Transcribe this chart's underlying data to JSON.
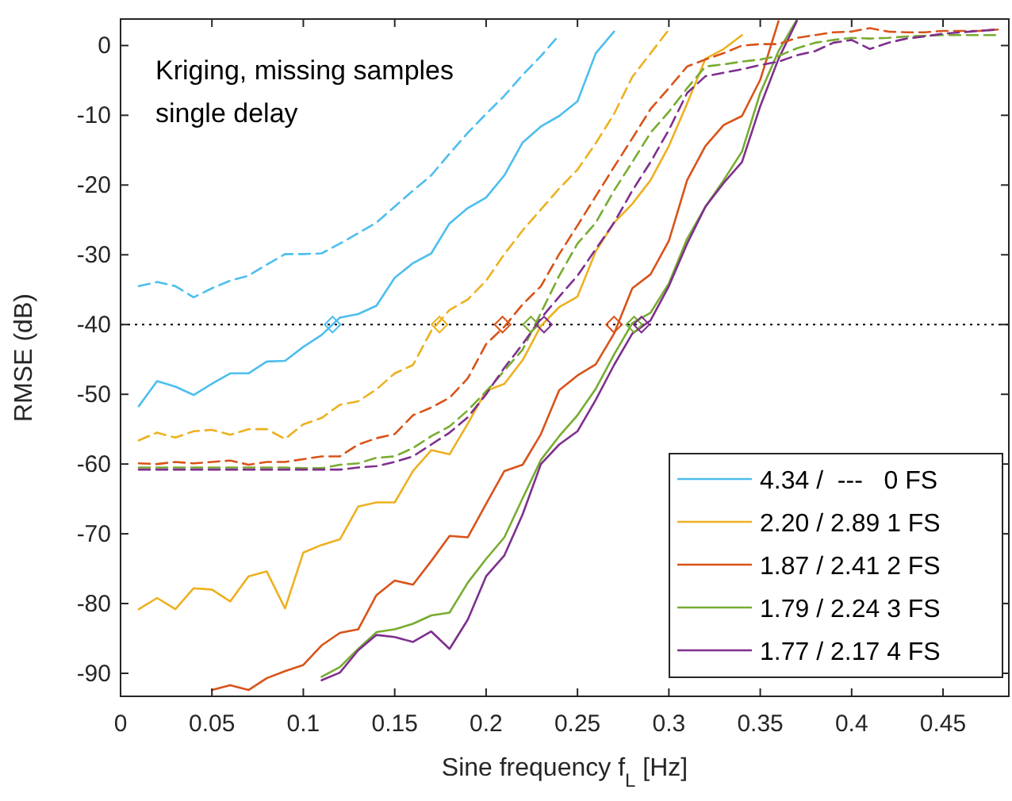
{
  "chart_data": {
    "type": "line",
    "xlabel": "Sine frequency f$_{L}$ [Hz]",
    "ylabel": "RMSE (dB)",
    "annotations": [
      "Kriging, missing samples\nsingle delay"
    ],
    "xlim": [
      0,
      0.486
    ],
    "ylim": [
      -93.3,
      3.8
    ],
    "xticks": [
      0,
      0.05,
      0.1,
      0.15,
      0.2,
      0.25,
      0.3,
      0.35,
      0.4,
      0.45
    ],
    "yticks": [
      -90,
      -80,
      -70,
      -60,
      -50,
      -40,
      -30,
      -20,
      -10,
      0
    ],
    "legend": "bottom right",
    "marker": "none",
    "ref_lines": [
      {
        "axis": "y",
        "value": -40,
        "color": "#000000",
        "line_style": "dotted"
      }
    ],
    "series": [
      {
        "name": "4.34 /  ---   0 FS",
        "color": "#4dbeee",
        "line_style": "solid",
        "x": [
          0.01,
          0.02,
          0.03,
          0.04,
          0.05,
          0.06,
          0.07,
          0.08,
          0.09,
          0.1,
          0.11,
          0.12,
          0.13,
          0.14,
          0.15,
          0.16,
          0.17,
          0.18,
          0.19,
          0.2,
          0.21,
          0.22,
          0.23,
          0.24,
          0.25,
          0.26,
          0.27
        ],
        "values": [
          -51.7,
          -48.1,
          -48.9,
          -50.1,
          -48.5,
          -47,
          -47,
          -45.3,
          -45.2,
          -43.2,
          -41.5,
          -39,
          -38.5,
          -37.3,
          -33.3,
          -31.2,
          -29.8,
          -25.5,
          -23.3,
          -21.8,
          -18.6,
          -13.9,
          -11.6,
          -10.1,
          -8,
          -1.1,
          2
        ]
      },
      {
        "name": "2.20 / 2.89 1 FS",
        "color": "#edb120",
        "line_style": "solid",
        "x": [
          0.01,
          0.02,
          0.03,
          0.04,
          0.05,
          0.06,
          0.07,
          0.08,
          0.09,
          0.1,
          0.11,
          0.12,
          0.13,
          0.14,
          0.15,
          0.16,
          0.17,
          0.18,
          0.19,
          0.2,
          0.21,
          0.22,
          0.23,
          0.24,
          0.25,
          0.26,
          0.27,
          0.28,
          0.29,
          0.3,
          0.31,
          0.32,
          0.33,
          0.34
        ],
        "values": [
          -80.8,
          -79.2,
          -80.8,
          -77.8,
          -78,
          -79.7,
          -76.1,
          -75.4,
          -80.7,
          -72.7,
          -71.6,
          -70.8,
          -66.1,
          -65.5,
          -65.5,
          -61,
          -58,
          -58.6,
          -54.2,
          -49.5,
          -48.5,
          -45.1,
          -40.2,
          -37.5,
          -36,
          -29.5,
          -25.4,
          -22.7,
          -19.3,
          -14.4,
          -8.3,
          -1.9,
          -0.5,
          1.5
        ]
      },
      {
        "name": "1.87 / 2.41 2 FS",
        "color": "#d95319",
        "line_style": "solid",
        "x": [
          0.05,
          0.06,
          0.07,
          0.08,
          0.09,
          0.1,
          0.11,
          0.12,
          0.13,
          0.14,
          0.15,
          0.16,
          0.17,
          0.18,
          0.19,
          0.2,
          0.21,
          0.22,
          0.23,
          0.24,
          0.25,
          0.26,
          0.27,
          0.28,
          0.29,
          0.3,
          0.31,
          0.32,
          0.33,
          0.34,
          0.35,
          0.36
        ],
        "values": [
          -92.4,
          -91.7,
          -92.4,
          -90.7,
          -89.7,
          -88.8,
          -86,
          -84.2,
          -83.7,
          -78.8,
          -76.7,
          -77.3,
          -73.9,
          -70.3,
          -70.5,
          -65.7,
          -61,
          -60.1,
          -55.7,
          -49.4,
          -47.3,
          -45.7,
          -41.3,
          -34.8,
          -32.8,
          -28,
          -19.3,
          -14.4,
          -11.4,
          -10.1,
          -4.9,
          3.5
        ]
      },
      {
        "name": "1.79 / 2.24 3 FS",
        "color": "#77ac30",
        "line_style": "solid",
        "x": [
          0.11,
          0.12,
          0.13,
          0.14,
          0.15,
          0.16,
          0.17,
          0.18,
          0.19,
          0.2,
          0.21,
          0.22,
          0.23,
          0.24,
          0.25,
          0.26,
          0.27,
          0.28,
          0.29,
          0.3,
          0.31,
          0.32,
          0.33,
          0.34,
          0.35,
          0.36,
          0.37
        ],
        "values": [
          -90.5,
          -89.1,
          -86.5,
          -84.1,
          -83.7,
          -82.9,
          -81.7,
          -81.3,
          -77,
          -73.6,
          -70.5,
          -64.9,
          -59.4,
          -56,
          -53,
          -49.2,
          -44.3,
          -39.8,
          -38.3,
          -34.1,
          -27.7,
          -23.1,
          -19.3,
          -15.2,
          -6.8,
          -0.8,
          3.7
        ]
      },
      {
        "name": "1.77 / 2.17 4 FS",
        "color": "#7e2f8e",
        "line_style": "solid",
        "x": [
          0.11,
          0.12,
          0.13,
          0.14,
          0.15,
          0.16,
          0.17,
          0.18,
          0.19,
          0.2,
          0.21,
          0.22,
          0.23,
          0.24,
          0.25,
          0.26,
          0.27,
          0.28,
          0.29,
          0.3,
          0.31,
          0.32,
          0.33,
          0.34,
          0.35,
          0.36,
          0.37
        ],
        "values": [
          -91,
          -89.9,
          -86.7,
          -84.5,
          -84.8,
          -85.5,
          -84,
          -86.5,
          -82.3,
          -76.1,
          -73.1,
          -67.2,
          -60,
          -57.2,
          -55.3,
          -50.8,
          -45.8,
          -41.3,
          -39.4,
          -34.5,
          -28.4,
          -23.1,
          -19.7,
          -16.7,
          -8.7,
          -1.9,
          3.5
        ]
      },
      {
        "color": "#4dbeee",
        "line_style": "dashed",
        "x": [
          0.01,
          0.02,
          0.03,
          0.04,
          0.05,
          0.06,
          0.07,
          0.08,
          0.09,
          0.1,
          0.11,
          0.12,
          0.13,
          0.14,
          0.15,
          0.16,
          0.17,
          0.18,
          0.19,
          0.2,
          0.21,
          0.22,
          0.23,
          0.24
        ],
        "values": [
          -34.5,
          -33.9,
          -34.5,
          -36.1,
          -34.8,
          -33.7,
          -33,
          -31.4,
          -29.9,
          -29.9,
          -29.8,
          -28.4,
          -26.9,
          -25.4,
          -23.1,
          -20.8,
          -18.6,
          -15.5,
          -12.5,
          -9.8,
          -7.2,
          -4.2,
          -1.5,
          1.5
        ]
      },
      {
        "color": "#edb120",
        "line_style": "dashed",
        "x": [
          0.01,
          0.02,
          0.03,
          0.04,
          0.05,
          0.06,
          0.07,
          0.08,
          0.09,
          0.1,
          0.11,
          0.12,
          0.13,
          0.14,
          0.15,
          0.16,
          0.17,
          0.18,
          0.19,
          0.2,
          0.21,
          0.22,
          0.23,
          0.24,
          0.25,
          0.26,
          0.27,
          0.28,
          0.29,
          0.3
        ],
        "values": [
          -56.6,
          -55.5,
          -56.2,
          -55.3,
          -55.1,
          -55.8,
          -55,
          -55,
          -56.4,
          -54.3,
          -53.4,
          -51.5,
          -51,
          -49.3,
          -47,
          -45.8,
          -40.9,
          -37.9,
          -36.4,
          -33.7,
          -29.9,
          -26.5,
          -23.5,
          -20.5,
          -17.8,
          -14,
          -9.8,
          -4.5,
          -1.1,
          2.3
        ]
      },
      {
        "color": "#d95319",
        "line_style": "dashed",
        "x": [
          0.01,
          0.02,
          0.03,
          0.04,
          0.05,
          0.06,
          0.07,
          0.08,
          0.09,
          0.1,
          0.11,
          0.12,
          0.13,
          0.14,
          0.15,
          0.16,
          0.17,
          0.18,
          0.19,
          0.2,
          0.21,
          0.22,
          0.23,
          0.24,
          0.25,
          0.26,
          0.27,
          0.28,
          0.29,
          0.3,
          0.31,
          0.32,
          0.33,
          0.34,
          0.35,
          0.36,
          0.37,
          0.38,
          0.39,
          0.4,
          0.41,
          0.42,
          0.43,
          0.44,
          0.45,
          0.46,
          0.47,
          0.48
        ],
        "values": [
          -59.9,
          -60,
          -59.7,
          -59.9,
          -59.7,
          -59.5,
          -60.1,
          -59.7,
          -59.7,
          -59.3,
          -58.9,
          -58.9,
          -57.2,
          -56.3,
          -55.7,
          -53,
          -51.9,
          -50.5,
          -47.7,
          -42.8,
          -40.3,
          -37.1,
          -34.5,
          -29.9,
          -25.8,
          -21.6,
          -17.4,
          -13.3,
          -9.1,
          -6.1,
          -3,
          -2,
          -1.1,
          0,
          0.2,
          0.2,
          1.1,
          1.5,
          1.9,
          2,
          2.5,
          2,
          1.9,
          1.9,
          2.1,
          2.1,
          2.1,
          2.3
        ]
      },
      {
        "color": "#77ac30",
        "line_style": "dashed",
        "x": [
          0.01,
          0.02,
          0.03,
          0.04,
          0.05,
          0.06,
          0.07,
          0.08,
          0.09,
          0.1,
          0.11,
          0.12,
          0.13,
          0.14,
          0.15,
          0.16,
          0.17,
          0.18,
          0.19,
          0.2,
          0.21,
          0.22,
          0.23,
          0.24,
          0.25,
          0.26,
          0.27,
          0.28,
          0.29,
          0.3,
          0.31,
          0.32,
          0.33,
          0.34,
          0.35,
          0.36,
          0.37,
          0.38,
          0.39,
          0.4,
          0.41,
          0.42,
          0.43,
          0.44,
          0.45,
          0.46,
          0.47,
          0.48
        ],
        "values": [
          -60.5,
          -60.5,
          -60.5,
          -60.5,
          -60.5,
          -60.5,
          -60.5,
          -60.5,
          -60.5,
          -60.6,
          -60.6,
          -60.1,
          -59.9,
          -59.1,
          -58.9,
          -57.7,
          -56,
          -54.6,
          -52.3,
          -49.6,
          -46.6,
          -43.6,
          -38.3,
          -33,
          -28.4,
          -25.4,
          -20.8,
          -16.7,
          -12.5,
          -9.5,
          -6.1,
          -3,
          -2.7,
          -2.3,
          -2,
          -1.5,
          -0.4,
          0.4,
          0.8,
          1.1,
          1,
          1.1,
          1.3,
          1.4,
          1.5,
          1.5,
          1.5,
          1.5
        ]
      },
      {
        "color": "#7e2f8e",
        "line_style": "dashed",
        "x": [
          0.01,
          0.02,
          0.03,
          0.04,
          0.05,
          0.06,
          0.07,
          0.08,
          0.09,
          0.1,
          0.11,
          0.12,
          0.13,
          0.14,
          0.15,
          0.16,
          0.17,
          0.18,
          0.19,
          0.2,
          0.21,
          0.22,
          0.23,
          0.24,
          0.25,
          0.26,
          0.27,
          0.28,
          0.29,
          0.3,
          0.31,
          0.32,
          0.33,
          0.34,
          0.35,
          0.36,
          0.37,
          0.38,
          0.39,
          0.4,
          0.41,
          0.42,
          0.43,
          0.44,
          0.45,
          0.46,
          0.47,
          0.48
        ],
        "values": [
          -60.8,
          -60.8,
          -60.8,
          -60.8,
          -60.8,
          -60.8,
          -60.8,
          -60.8,
          -60.8,
          -60.8,
          -60.8,
          -60.8,
          -60.5,
          -60.3,
          -59.7,
          -58.9,
          -57.2,
          -55.5,
          -53.3,
          -50,
          -46.2,
          -42.8,
          -39.1,
          -36,
          -33,
          -29.2,
          -25.4,
          -20.8,
          -16.7,
          -12.1,
          -6.8,
          -4.4,
          -3.9,
          -3.4,
          -2.8,
          -2.3,
          -1.4,
          -0.8,
          0.4,
          0.8,
          -0.5,
          0.4,
          1,
          1.3,
          1.7,
          1.9,
          2.1,
          2.3
        ]
      },
      {
        "type": "scatter",
        "marker": "diamond",
        "x": [
          0.116,
          0.1745,
          0.209,
          0.2245,
          0.2317,
          0.27,
          0.281,
          0.285
        ],
        "values": [
          -40,
          -40,
          -40,
          -40,
          -40,
          -40,
          -40,
          -40
        ],
        "colors": [
          "#4dbeee",
          "#edb120",
          "#d95319",
          "#77ac30",
          "#7e2f8e",
          "#d95319",
          "#77ac30",
          "#7e2f8e"
        ]
      }
    ]
  }
}
